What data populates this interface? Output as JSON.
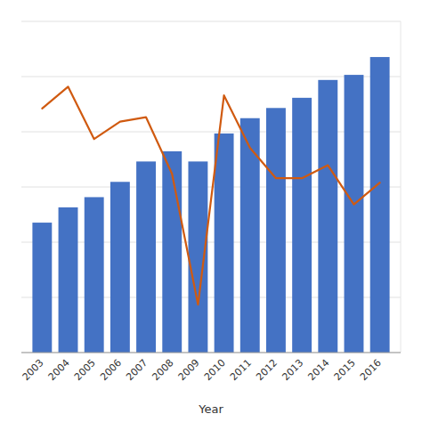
{
  "chart_data": {
    "type": "bar",
    "xlabel": "Year",
    "categories": [
      "2003",
      "2004",
      "2005",
      "2006",
      "2007",
      "2008",
      "2009",
      "2010",
      "2011",
      "2012",
      "2013",
      "2014",
      "2015",
      "2016"
    ],
    "series": [
      {
        "type": "bar",
        "color": "#4472C4",
        "values": [
          255,
          285,
          305,
          335,
          375,
          395,
          375,
          430,
          460,
          480,
          500,
          535,
          545,
          580
        ]
      },
      {
        "type": "line",
        "axis": "y2",
        "color": "#D05A10",
        "values": [
          12.0,
          14.5,
          8.5,
          10.5,
          11.0,
          4.5,
          -10.5,
          13.5,
          7.5,
          4.0,
          4.0,
          5.5,
          1.0,
          3.5
        ]
      }
    ],
    "ylim": [
      0,
      650
    ],
    "yticks": [
      0,
      108.33333333333333,
      216.66666666666666,
      325,
      433.3333333333333,
      541.6666666666666,
      650
    ],
    "y2lim": [
      -16,
      22
    ],
    "grid": true,
    "tick_labels": "x"
  }
}
